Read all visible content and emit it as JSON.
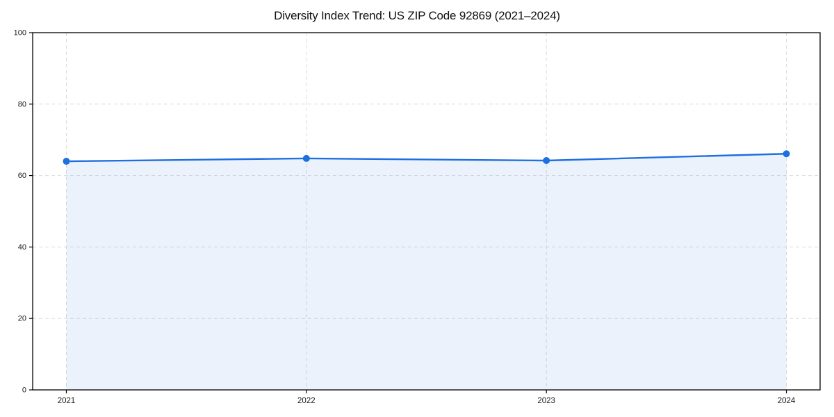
{
  "chart_data": {
    "type": "area",
    "title": "Diversity Index Trend: US ZIP Code 92869 (2021–2024)",
    "categories": [
      "2021",
      "2022",
      "2023",
      "2024"
    ],
    "series": [
      {
        "name": "Diversity Index",
        "values": [
          64.0,
          64.8,
          64.2,
          66.1
        ]
      }
    ],
    "xlabel": "",
    "ylabel": "",
    "ylim": [
      0,
      100
    ],
    "yticks": [
      0,
      20,
      40,
      60,
      80,
      100
    ],
    "grid": "dashed, horizontal and vertical",
    "legend": "none",
    "line_color": "#1e6fe0",
    "marker_color": "#1e6fe0",
    "fill_opacity": 0.09,
    "grid_color": "#dcdcdc",
    "spine_color": "#000000",
    "tick_label_color": "#1a1a1a",
    "background": "#ffffff"
  }
}
